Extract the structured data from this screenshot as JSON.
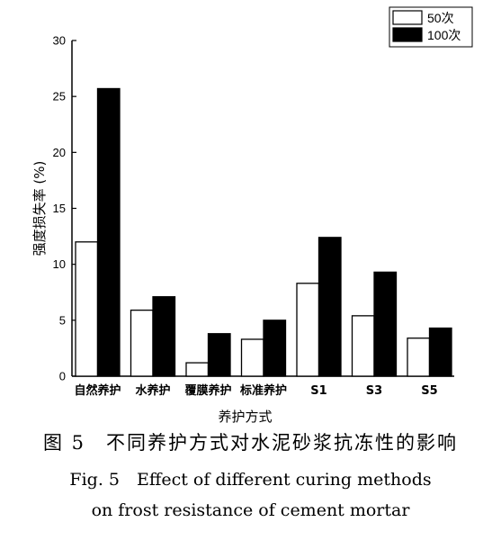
{
  "chart_data": {
    "type": "bar",
    "categories": [
      "自然养护",
      "水养护",
      "覆膜养护",
      "标准养护",
      "S1",
      "S3",
      "S5"
    ],
    "series": [
      {
        "name": "50次",
        "values": [
          12.0,
          5.9,
          1.2,
          3.3,
          8.3,
          5.4,
          3.4
        ],
        "color": "#ffffff"
      },
      {
        "name": "100次",
        "values": [
          25.7,
          7.1,
          3.8,
          5.0,
          12.4,
          9.3,
          4.3
        ],
        "color": "#000000"
      }
    ],
    "title": "",
    "xlabel": "养护方式",
    "ylabel": "强度损失率 (%)",
    "ylim": [
      0,
      30
    ],
    "yticks": [
      0,
      5,
      10,
      15,
      20,
      25,
      30
    ],
    "grid": false,
    "legend": "top-right"
  },
  "caption": {
    "cn": "图 5　不同养护方式对水泥砂浆抗冻性的影响",
    "en_line1": "Fig. 5　Effect of different curing methods",
    "en_line2": "on frost resistance of cement mortar"
  }
}
